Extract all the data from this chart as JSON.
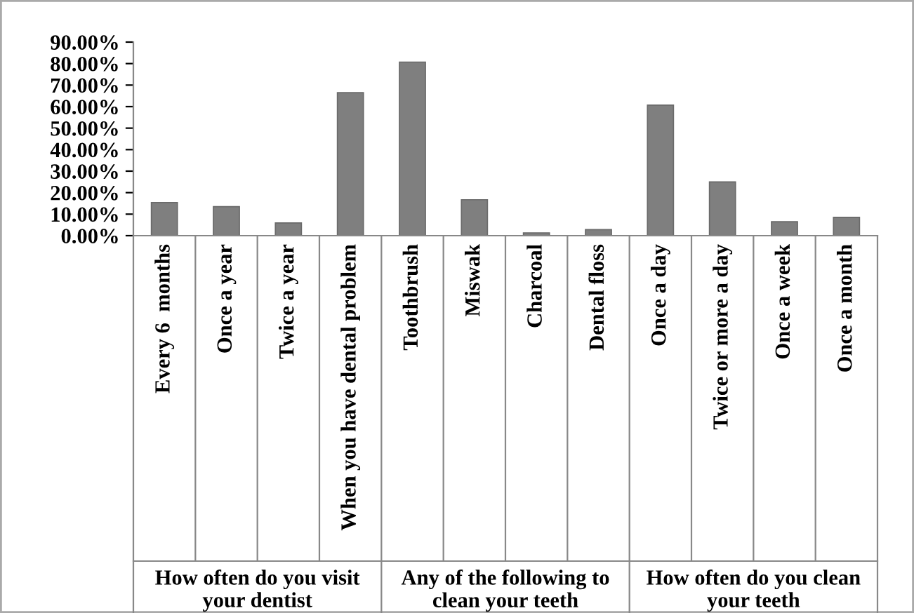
{
  "chart_data": {
    "type": "bar",
    "categories": [
      "Every 6  months",
      "Once a year",
      "Twice a year",
      "When you have dental problem",
      "Toothbrush",
      "Miswak",
      "Charcoal",
      "Dental floss",
      "Once a day",
      "Twice or more a day",
      "Once a week",
      "Once a month"
    ],
    "values": [
      15.4,
      13.5,
      5.9,
      66.5,
      80.7,
      16.7,
      1.3,
      2.8,
      60.7,
      25,
      6.5,
      8.5
    ],
    "color": "#7f7f7f",
    "ylim": [
      0,
      90
    ],
    "yticks": [
      {
        "value": 0,
        "label": "0.00%"
      },
      {
        "value": 10,
        "label": "10.00%"
      },
      {
        "value": 20,
        "label": "20.00%"
      },
      {
        "value": 30,
        "label": "30.00%"
      },
      {
        "value": 40,
        "label": "40.00%"
      },
      {
        "value": 50,
        "label": "50.00%"
      },
      {
        "value": 60,
        "label": "60.00%"
      },
      {
        "value": 70,
        "label": "70.00%"
      },
      {
        "value": 80,
        "label": "80.00%"
      },
      {
        "value": 90,
        "label": "90.00%"
      }
    ],
    "annotations": [
      "How often do you visit your dentist",
      "Any of the following to clean your teeth",
      "How often do you clean your teeth"
    ],
    "grid": false,
    "legend": false
  }
}
